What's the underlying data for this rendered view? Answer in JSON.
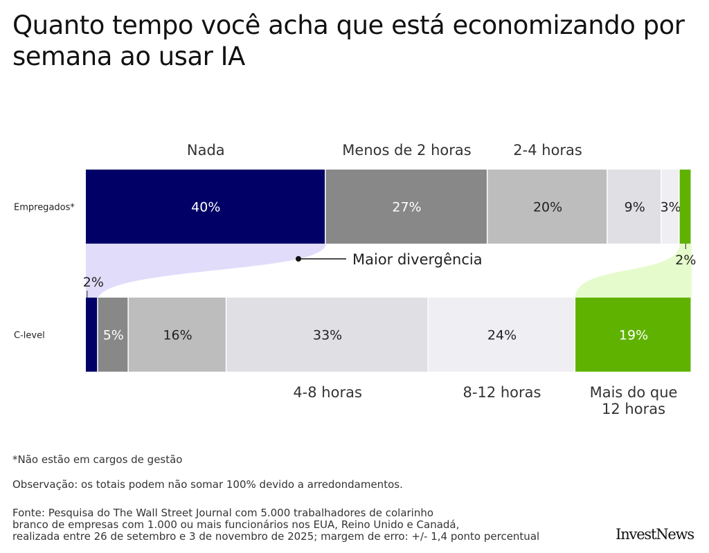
{
  "title": "Quanto tempo você acha que está economizando por semana ao usar IA",
  "chart_data": {
    "type": "bar",
    "orientation": "horizontal",
    "stacked": true,
    "title": "Quanto tempo você acha que está economizando por semana ao usar IA",
    "categories": [
      "Empregados*",
      "C-level"
    ],
    "series": [
      {
        "name": "Nada",
        "values": [
          40,
          2
        ],
        "color": "#000066"
      },
      {
        "name": "Menos de 2 horas",
        "values": [
          27,
          5
        ],
        "color": "#888888"
      },
      {
        "name": "2-4 horas",
        "values": [
          20,
          16
        ],
        "color": "#bdbdbd"
      },
      {
        "name": "4-8 horas",
        "values": [
          9,
          33
        ],
        "color": "#e0dfe3"
      },
      {
        "name": "8-12 horas",
        "values": [
          3,
          24
        ],
        "color": "#efeef2"
      },
      {
        "name": "Mais do que 12 horas",
        "values": [
          2,
          19
        ],
        "color": "#5fb300"
      }
    ],
    "unit": "%",
    "annotation": "Maior divergência",
    "connector_colors": {
      "nada": "#e0dcfa",
      "mais_12": "#e6fbcc"
    }
  },
  "notes": {
    "footnote": "*Não estão em cargos de gestão",
    "observation": "Observação: os totais podem não somar 100% devido a arredondamentos.",
    "source_lines": [
      "Fonte: Pesquisa do The Wall Street Journal com 5.000 trabalhadores de colarinho",
      "branco de empresas com 1.000 ou mais funcionários nos EUA, Reino Unido e Canadá,",
      "realizada entre 26 de setembro e 3 de novembro de 2025; margem de erro: +/- 1,4 ponto percentual"
    ]
  },
  "logo": "InvestNews"
}
